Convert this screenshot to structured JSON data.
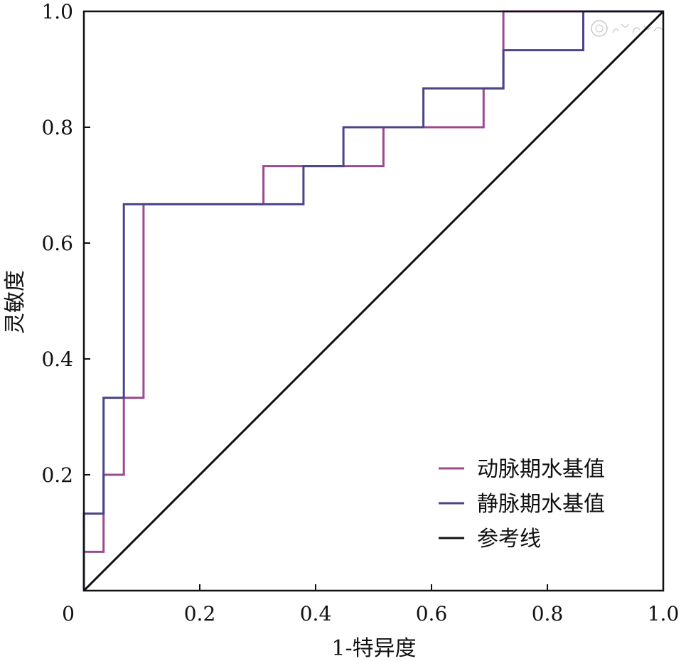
{
  "chart_data": {
    "type": "line",
    "title": "",
    "xlabel": "1-特异度",
    "ylabel": "灵敏度",
    "xlim": [
      0,
      1
    ],
    "ylim": [
      0,
      1
    ],
    "xticks": [
      {
        "value": 0,
        "label": "0"
      },
      {
        "value": 0.2,
        "label": "0.2"
      },
      {
        "value": 0.4,
        "label": "0.4"
      },
      {
        "value": 0.6,
        "label": "0.6"
      },
      {
        "value": 0.8,
        "label": "0.8"
      },
      {
        "value": 1.0,
        "label": "1.0"
      }
    ],
    "yticks": [
      {
        "value": 0.2,
        "label": "0.2"
      },
      {
        "value": 0.4,
        "label": "0.4"
      },
      {
        "value": 0.6,
        "label": "0.6"
      },
      {
        "value": 0.8,
        "label": "0.8"
      },
      {
        "value": 1.0,
        "label": "1.0"
      }
    ],
    "grid": false,
    "legend_position": "bottom-right",
    "series": [
      {
        "name": "动脉期水基值",
        "color": "#9c4a8e",
        "step": true,
        "x": [
          0,
          0,
          0.034,
          0.034,
          0.069,
          0.069,
          0.103,
          0.103,
          0.31,
          0.31,
          0.517,
          0.517,
          0.69,
          0.69,
          0.724,
          0.724,
          1.0
        ],
        "y": [
          0,
          0.067,
          0.067,
          0.2,
          0.2,
          0.333,
          0.333,
          0.667,
          0.667,
          0.733,
          0.733,
          0.8,
          0.8,
          0.867,
          0.867,
          1.0,
          1.0
        ]
      },
      {
        "name": "静脉期水基值",
        "color": "#4a4488",
        "step": true,
        "x": [
          0,
          0,
          0.034,
          0.034,
          0.069,
          0.069,
          0.379,
          0.379,
          0.448,
          0.448,
          0.586,
          0.586,
          0.724,
          0.724,
          0.862,
          0.862,
          1.0
        ],
        "y": [
          0,
          0.133,
          0.133,
          0.333,
          0.333,
          0.667,
          0.667,
          0.733,
          0.733,
          0.8,
          0.8,
          0.867,
          0.867,
          0.933,
          0.933,
          1.0,
          1.0
        ]
      },
      {
        "name": "参考线",
        "color": "#111111",
        "step": false,
        "x": [
          0,
          1
        ],
        "y": [
          0,
          1
        ]
      }
    ],
    "watermark": "中华医学会"
  }
}
